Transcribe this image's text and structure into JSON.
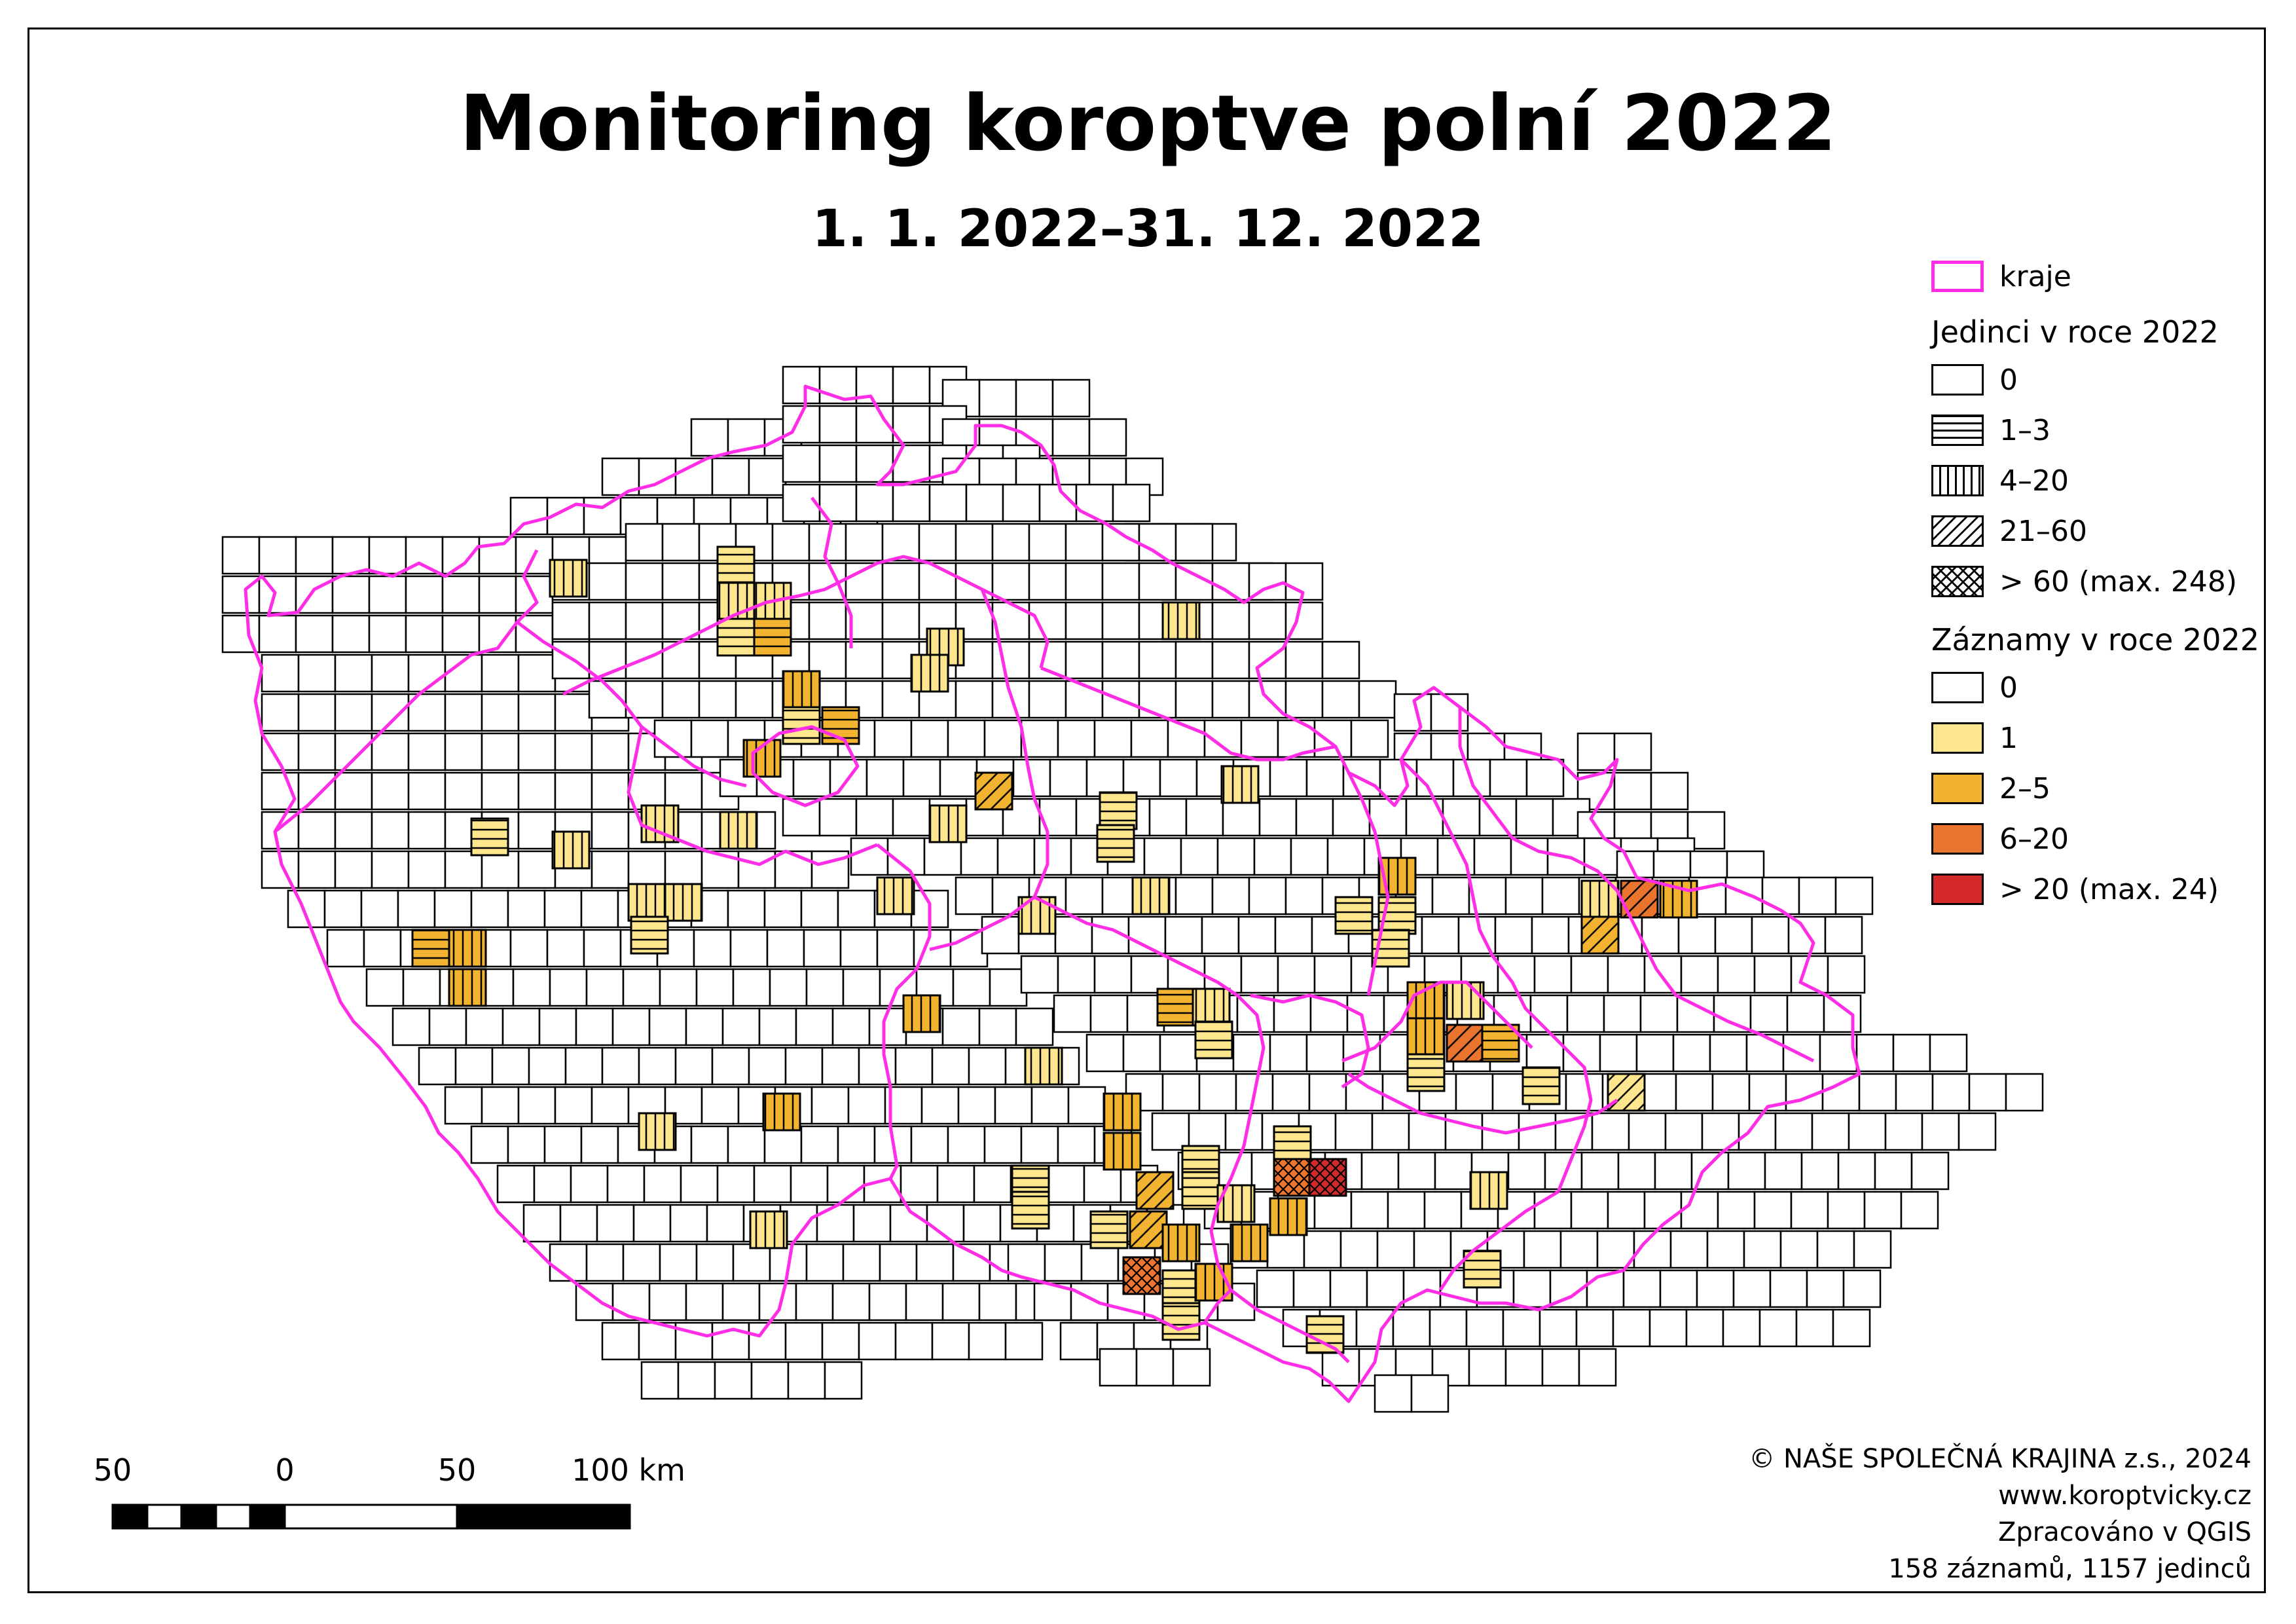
{
  "map": {
    "title": "Monitoring koroptve polní 2022",
    "subtitle": "1. 1. 2022–31. 12. 2022",
    "colors": {
      "border": "#ff2ee6",
      "records_0": "#ffffff",
      "records_1": "#fde68e",
      "records_2_5": "#f2b430",
      "records_6_20": "#e8742e",
      "records_gt20": "#d42a2a",
      "grid": "#000000"
    }
  },
  "legend": {
    "regions_label": "kraje",
    "individuals_heading": "Jedinci v roce 2022",
    "individuals": [
      {
        "label": "0",
        "pattern": "none"
      },
      {
        "label": "1–3",
        "pattern": "horizontal"
      },
      {
        "label": "4–20",
        "pattern": "vertical"
      },
      {
        "label": "21–60",
        "pattern": "diagonal"
      },
      {
        "label": "> 60 (max. 248)",
        "pattern": "cross"
      }
    ],
    "records_heading": "Záznamy v roce 2022",
    "records": [
      {
        "label": "0",
        "color": "#ffffff"
      },
      {
        "label": "1",
        "color": "#fde68e"
      },
      {
        "label": "2–5",
        "color": "#f2b430"
      },
      {
        "label": "6–20",
        "color": "#e8742e"
      },
      {
        "label": "> 20 (max. 24)",
        "color": "#d42a2a"
      }
    ]
  },
  "scale": {
    "labels": [
      "50",
      "0",
      "50",
      "100 km"
    ]
  },
  "credits": {
    "line1": "© NAŠE SPOLEČNÁ KRAJINA z.s., 2024",
    "line2": "www.koroptvicky.cz",
    "line3": "Zpracováno v QGIS",
    "line4": "158 záznamů, 1157 jedinců"
  }
}
